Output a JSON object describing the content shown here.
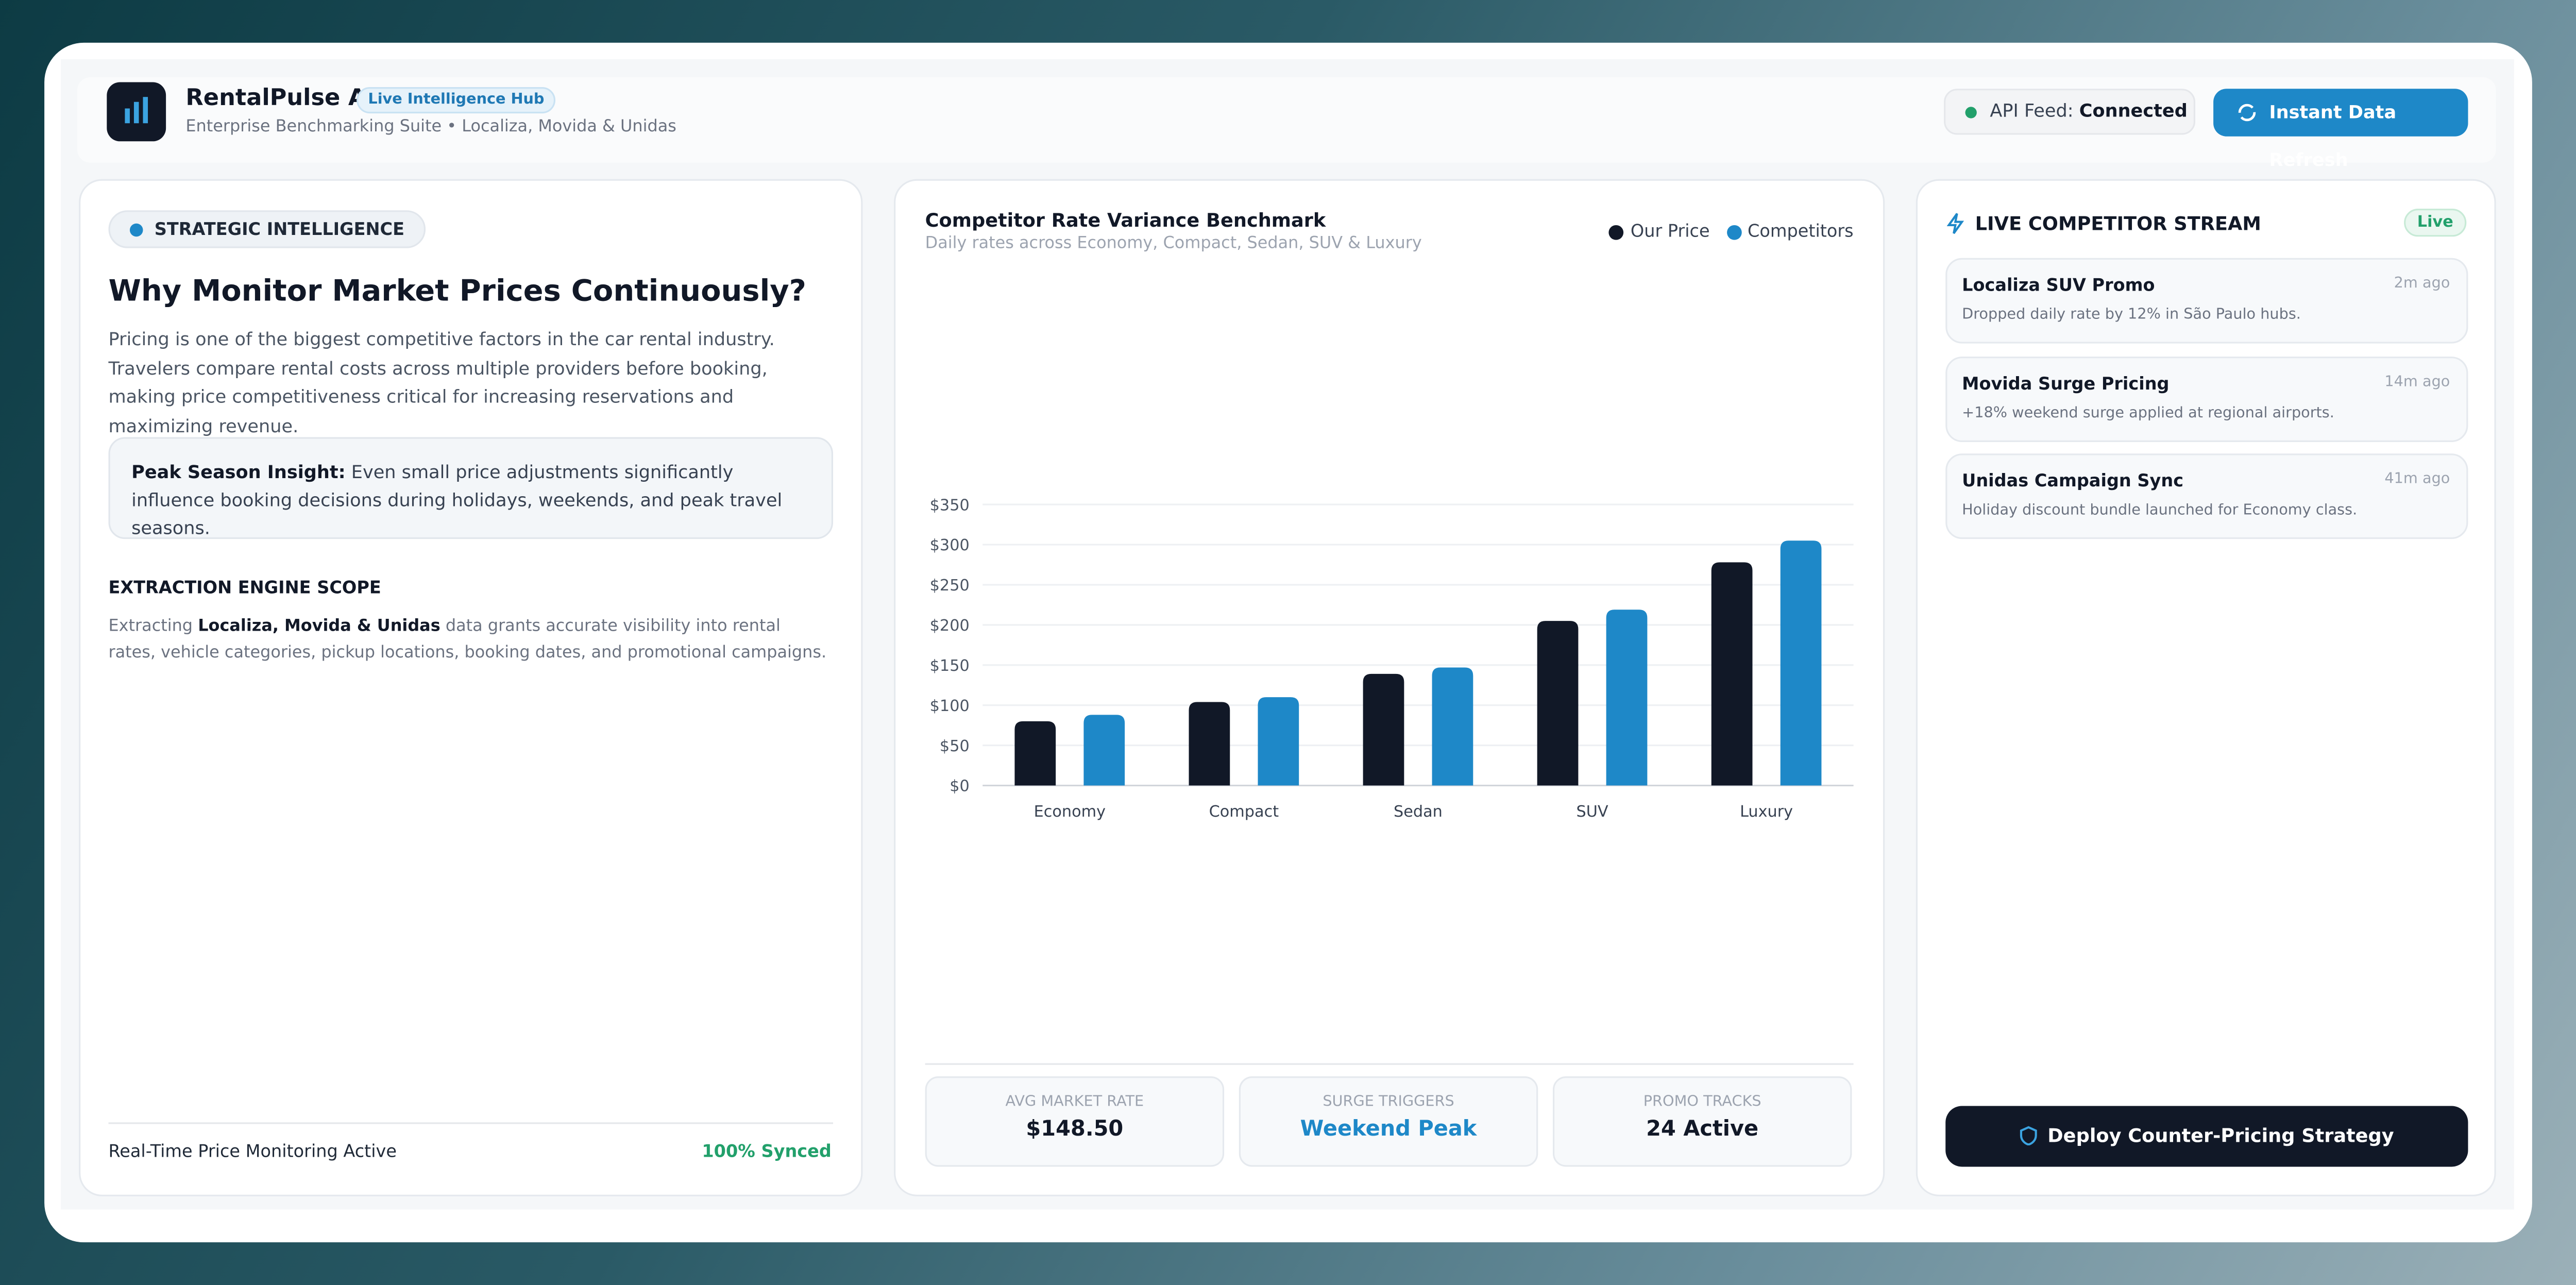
{
  "header": {
    "app_name": "RentalPulse AI",
    "badge": "Live Intelligence Hub",
    "subtitle": "Enterprise Benchmarking Suite • Localiza, Movida & Unidas",
    "api_label": "API Feed:",
    "api_status": "Connected",
    "refresh_button": "Instant Data Refresh"
  },
  "left": {
    "tag": "STRATEGIC INTELLIGENCE",
    "title": "Why Monitor Market Prices Continuously?",
    "body": "Pricing is one of the biggest competitive factors in the car rental industry. Travelers compare rental costs across multiple providers before booking, making price competitiveness critical for increasing reservations and maximizing revenue.",
    "insight_label": "Peak Season Insight:",
    "insight_text": " Even small price adjustments significantly influence booking decisions during holidays, weekends, and peak travel seasons.",
    "scope_title": "EXTRACTION ENGINE SCOPE",
    "scope_pre": "Extracting ",
    "scope_bold": "Localiza, Movida & Unidas",
    "scope_post": " data grants accurate visibility into rental rates, vehicle categories, pickup locations, booking dates, and promotional campaigns.",
    "footer_label": "Real-Time Price Monitoring Active",
    "footer_status": "100% Synced"
  },
  "chart_data": {
    "type": "bar",
    "title": "Competitor Rate Variance Benchmark",
    "subtitle": "Daily rates across Economy, Compact, Sedan, SUV & Luxury",
    "categories": [
      "Economy",
      "Compact",
      "Sedan",
      "SUV",
      "Luxury"
    ],
    "series": [
      {
        "name": "Our Price",
        "color": "#111827",
        "values": [
          80,
          104,
          139,
          205,
          278
        ]
      },
      {
        "name": "Competitors",
        "color": "#1e88c8",
        "values": [
          88,
          110,
          147,
          219,
          305
        ]
      }
    ],
    "ylim": [
      0,
      350
    ],
    "yticks": [
      {
        "value": 0,
        "label": "$0"
      },
      {
        "value": 50,
        "label": "$50"
      },
      {
        "value": 100,
        "label": "$100"
      },
      {
        "value": 150,
        "label": "$150"
      },
      {
        "value": 200,
        "label": "$200"
      },
      {
        "value": 250,
        "label": "$250"
      },
      {
        "value": 300,
        "label": "$300"
      },
      {
        "value": 350,
        "label": "$350"
      }
    ],
    "grid": true,
    "legend": "top-right"
  },
  "stats": [
    {
      "label": "AVG MARKET RATE",
      "value": "$148.50"
    },
    {
      "label": "SURGE TRIGGERS",
      "value": "Weekend Peak"
    },
    {
      "label": "PROMO TRACKS",
      "value": "24 Active"
    }
  ],
  "stream": {
    "title": "LIVE COMPETITOR STREAM",
    "badge": "Live",
    "items": [
      {
        "title": "Localiza SUV Promo",
        "time": "2m ago",
        "text": "Dropped daily rate by 12% in São Paulo hubs."
      },
      {
        "title": "Movida Surge Pricing",
        "time": "14m ago",
        "text": "+18% weekend surge applied at regional airports."
      },
      {
        "title": "Unidas Campaign Sync",
        "time": "41m ago",
        "text": "Holiday discount bundle launched for Economy class."
      }
    ],
    "button": "Deploy Counter-Pricing Strategy"
  }
}
